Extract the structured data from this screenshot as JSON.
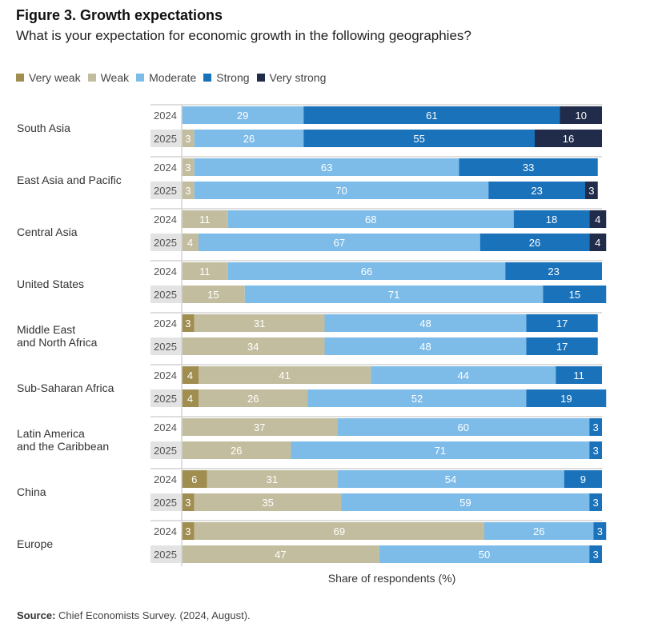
{
  "chart_data": {
    "type": "bar",
    "orientation": "horizontal",
    "stacked": true,
    "title": "Figure 3. Growth expectations",
    "subtitle": "What is your expectation for economic growth in the following geographies?",
    "xlabel": "Share of respondents (%)",
    "ylabel": "",
    "xlim": [
      0,
      100
    ],
    "legend_position": "top-left",
    "grid": false,
    "series_names": [
      "Very weak",
      "Weak",
      "Moderate",
      "Strong",
      "Very strong"
    ],
    "colors": {
      "Very weak": "#a08d50",
      "Weak": "#c3bd9f",
      "Moderate": "#7dbbe8",
      "Strong": "#1a72bb",
      "Very strong": "#212b4a"
    },
    "groups": [
      {
        "category": "South Asia",
        "rows": [
          {
            "year": "2024",
            "values": [
              0,
              0,
              29,
              61,
              10
            ]
          },
          {
            "year": "2025",
            "values": [
              0,
              3,
              26,
              55,
              16
            ]
          }
        ]
      },
      {
        "category": "East Asia and Pacific",
        "rows": [
          {
            "year": "2024",
            "values": [
              0,
              3,
              63,
              33,
              0
            ]
          },
          {
            "year": "2025",
            "values": [
              0,
              3,
              70,
              23,
              3
            ]
          }
        ]
      },
      {
        "category": "Central Asia",
        "rows": [
          {
            "year": "2024",
            "values": [
              0,
              11,
              68,
              18,
              4
            ]
          },
          {
            "year": "2025",
            "values": [
              0,
              4,
              67,
              26,
              4
            ]
          }
        ]
      },
      {
        "category": "United States",
        "rows": [
          {
            "year": "2024",
            "values": [
              0,
              11,
              66,
              23,
              0
            ]
          },
          {
            "year": "2025",
            "values": [
              0,
              15,
              71,
              15,
              0
            ]
          }
        ]
      },
      {
        "category": "Middle East\nand North Africa",
        "rows": [
          {
            "year": "2024",
            "values": [
              3,
              31,
              48,
              17,
              0
            ]
          },
          {
            "year": "2025",
            "values": [
              0,
              34,
              48,
              17,
              0
            ]
          }
        ]
      },
      {
        "category": "Sub-Saharan Africa",
        "rows": [
          {
            "year": "2024",
            "values": [
              4,
              41,
              44,
              11,
              0
            ]
          },
          {
            "year": "2025",
            "values": [
              4,
              26,
              52,
              19,
              0
            ]
          }
        ]
      },
      {
        "category": "Latin America\nand the Caribbean",
        "rows": [
          {
            "year": "2024",
            "values": [
              0,
              37,
              60,
              3,
              0
            ]
          },
          {
            "year": "2025",
            "values": [
              0,
              26,
              71,
              3,
              0
            ]
          }
        ]
      },
      {
        "category": "China",
        "rows": [
          {
            "year": "2024",
            "values": [
              6,
              31,
              54,
              9,
              0
            ]
          },
          {
            "year": "2025",
            "values": [
              3,
              35,
              59,
              3,
              0
            ]
          }
        ]
      },
      {
        "category": "Europe",
        "rows": [
          {
            "year": "2024",
            "values": [
              3,
              69,
              26,
              3,
              0
            ]
          },
          {
            "year": "2025",
            "values": [
              0,
              47,
              50,
              3,
              0
            ]
          }
        ]
      }
    ]
  },
  "figure": {
    "title": "Figure 3. Growth expectations",
    "subtitle": "What is your expectation for economic growth in the following geographies?",
    "legend": [
      {
        "label": "Very weak",
        "color": "#a08d50"
      },
      {
        "label": "Weak",
        "color": "#c3bd9f"
      },
      {
        "label": "Moderate",
        "color": "#7dbbe8"
      },
      {
        "label": "Strong",
        "color": "#1a72bb"
      },
      {
        "label": "Very strong",
        "color": "#212b4a"
      }
    ],
    "xlabel": "Share of respondents (%)",
    "source_label": "Source:",
    "source_text": " Chief Economists Survey. (2024, August)."
  }
}
